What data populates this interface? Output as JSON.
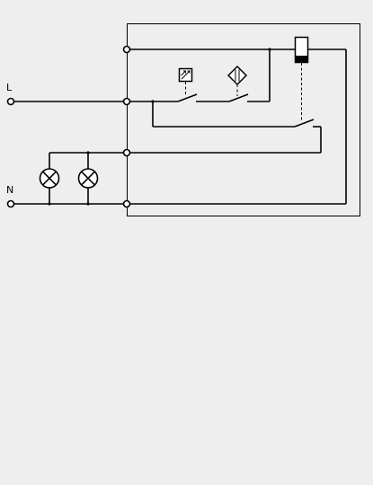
{
  "diagram": {
    "terminals": {
      "line": {
        "label": "L"
      },
      "neutral": {
        "label": "N"
      }
    },
    "components": {
      "light_sensor": {
        "icon": "light-sensor-icon"
      },
      "motion_sensor": {
        "icon": "motion-sensor-icon"
      },
      "relay_coil": {
        "icon": "relay-coil-icon"
      },
      "lamps": [
        {
          "icon": "lamp-icon"
        },
        {
          "icon": "lamp-icon"
        }
      ]
    },
    "colors": {
      "background": "#eeeeee",
      "line": "#000000"
    }
  }
}
